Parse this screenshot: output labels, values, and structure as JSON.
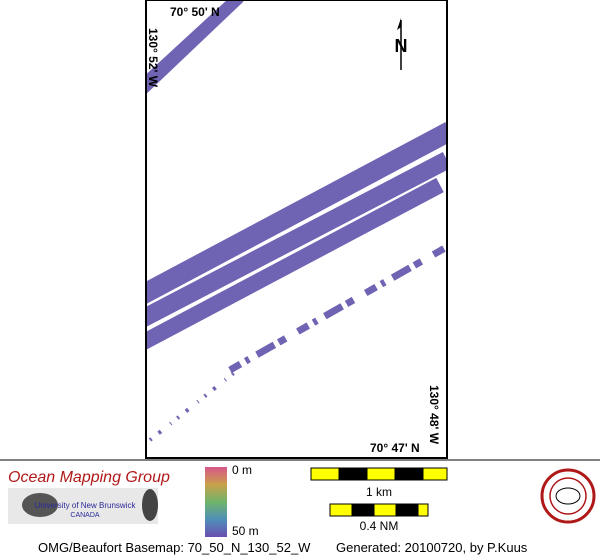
{
  "map": {
    "lat_top": "70° 50' N",
    "lon_left": "130° 52' W",
    "lon_right": "130° 48' W",
    "lat_bottom": "70° 47' N",
    "north": "N"
  },
  "legend": {
    "org": "Ocean Mapping Group",
    "university": "University of New Brunswick",
    "country": "CANADA",
    "depth_min": "0 m",
    "depth_max": "50 m",
    "scale_km": "1 km",
    "scale_nm": "0.4 NM"
  },
  "footer": {
    "basemap": "OMG/Beaufort Basemap: 70_50_N_130_52_W",
    "generated": "Generated: 20100720, by P.Kuus"
  }
}
